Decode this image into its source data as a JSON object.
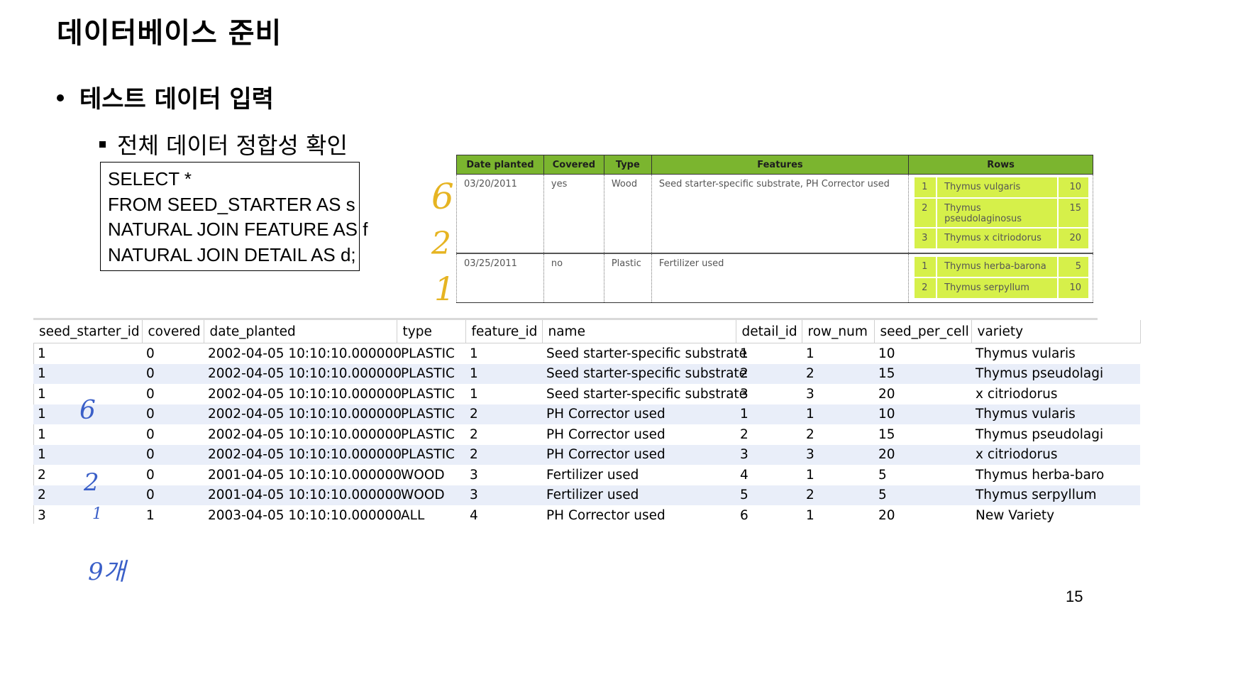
{
  "slide": {
    "title": "데이터베이스 준비",
    "bullet1": "테스트 데이터 입력",
    "bullet2": "전체 데이터 정합성 확인",
    "page_number": "15"
  },
  "sql": {
    "lines": [
      "SELECT *",
      "FROM SEED_STARTER AS s",
      "NATURAL JOIN FEATURE AS f",
      "NATURAL JOIN DETAIL AS d;"
    ]
  },
  "reference_table": {
    "headers": [
      "Date planted",
      "Covered",
      "Type",
      "Features",
      "Rows"
    ],
    "entries": [
      {
        "date": "03/20/2011",
        "covered": "yes",
        "type": "Wood",
        "features": "Seed starter-specific substrate, PH Corrector used",
        "rows": [
          {
            "n": "1",
            "name": "Thymus vulgaris",
            "count": "10"
          },
          {
            "n": "2",
            "name": "Thymus pseudolaginosus",
            "count": "15"
          },
          {
            "n": "3",
            "name": "Thymus x citriodorus",
            "count": "20"
          }
        ]
      },
      {
        "date": "03/25/2011",
        "covered": "no",
        "type": "Plastic",
        "features": "Fertilizer used",
        "rows": [
          {
            "n": "1",
            "name": "Thymus herba-barona",
            "count": "5"
          },
          {
            "n": "2",
            "name": "Thymus serpyllum",
            "count": "10"
          }
        ]
      }
    ],
    "accent_color": "#7bb52f",
    "row_highlight_color": "#d6f04a"
  },
  "result_grid": {
    "columns": [
      "seed_starter_id",
      "covered",
      "date_planted",
      "type",
      "feature_id",
      "name",
      "detail_id",
      "row_num",
      "seed_per_cell",
      "variety"
    ],
    "rows": [
      [
        "1",
        "0",
        "2002-04-05 10:10:10.000000",
        "PLASTIC",
        "1",
        "Seed starter-specific substrate",
        "1",
        "1",
        "10",
        "Thymus vularis"
      ],
      [
        "1",
        "0",
        "2002-04-05 10:10:10.000000",
        "PLASTIC",
        "1",
        "Seed starter-specific substrate",
        "2",
        "2",
        "15",
        "Thymus pseudolagi"
      ],
      [
        "1",
        "0",
        "2002-04-05 10:10:10.000000",
        "PLASTIC",
        "1",
        "Seed starter-specific substrate",
        "3",
        "3",
        "20",
        "x citriodorus"
      ],
      [
        "1",
        "0",
        "2002-04-05 10:10:10.000000",
        "PLASTIC",
        "2",
        "PH Corrector used",
        "1",
        "1",
        "10",
        "Thymus vularis"
      ],
      [
        "1",
        "0",
        "2002-04-05 10:10:10.000000",
        "PLASTIC",
        "2",
        "PH Corrector used",
        "2",
        "2",
        "15",
        "Thymus pseudolagi"
      ],
      [
        "1",
        "0",
        "2002-04-05 10:10:10.000000",
        "PLASTIC",
        "2",
        "PH Corrector used",
        "3",
        "3",
        "20",
        "x citriodorus"
      ],
      [
        "2",
        "0",
        "2001-04-05 10:10:10.000000",
        "WOOD",
        "3",
        "Fertilizer used",
        "4",
        "1",
        "5",
        "Thymus herba-baro"
      ],
      [
        "2",
        "0",
        "2001-04-05 10:10:10.000000",
        "WOOD",
        "3",
        "Fertilizer used",
        "5",
        "2",
        "5",
        "Thymus serpyllum"
      ],
      [
        "3",
        "1",
        "2003-04-05 10:10:10.000000",
        "ALL",
        "4",
        "PH Corrector used",
        "6",
        "1",
        "20",
        "New Variety"
      ]
    ],
    "stripe_color": "#e9eef9"
  },
  "annotations": {
    "top_6": "6",
    "top_2": "2",
    "top_1": "1",
    "grid_6": "6",
    "grid_2": "2",
    "grid_1": "1",
    "total": "9개",
    "top_color": "#e6b422",
    "grid_color": "#3a5fc8"
  }
}
